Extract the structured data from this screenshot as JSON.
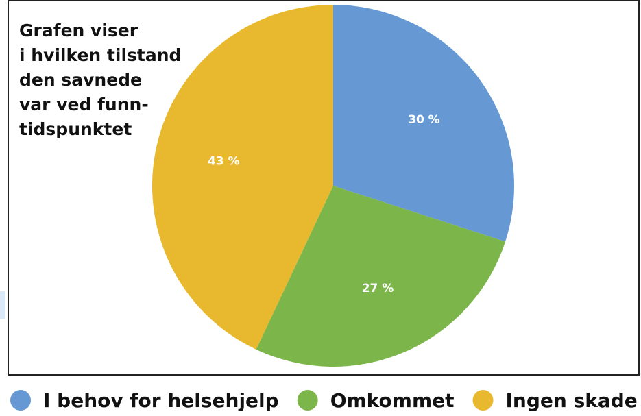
{
  "chart_data": {
    "type": "pie",
    "title": [
      "Grafen viser",
      "i hvilken tilstand",
      "den savnede",
      "var ved funn-",
      "tidspunktet"
    ],
    "categories": [
      "I behov for helsehjelp",
      "Omkommet",
      "Ingen skade"
    ],
    "values": [
      30,
      27,
      43
    ],
    "value_labels": [
      "30 %",
      "27 %",
      "43 %"
    ],
    "colors": [
      "#6699d4",
      "#7cb64a",
      "#e8b82f"
    ],
    "legend": "bottom"
  }
}
